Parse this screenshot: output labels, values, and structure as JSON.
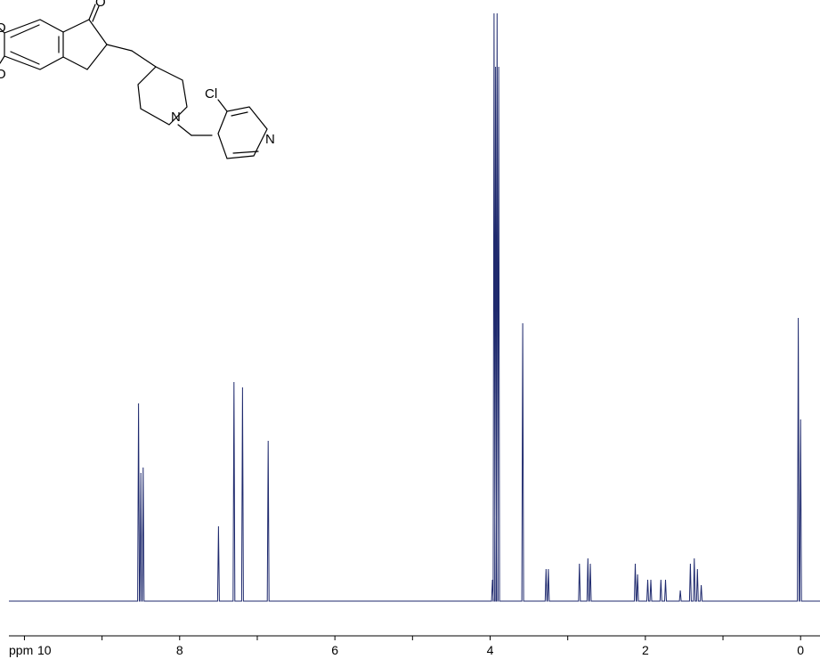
{
  "chart_data": {
    "type": "line",
    "title": "",
    "xlabel": "ppm",
    "ylabel": "",
    "x_reversed": true,
    "xlim": [
      10.2,
      -0.25
    ],
    "x_ticks": [
      10,
      8,
      6,
      4,
      2,
      0
    ],
    "x_tick_labels": [
      "10",
      "8",
      "6",
      "4",
      "2",
      "0"
    ],
    "minor_tick_step": 1,
    "grid": false,
    "legend": "none",
    "series": [
      {
        "peaks": [
          {
            "x": 8.53,
            "y": 0.37
          },
          {
            "x": 8.5,
            "y": 0.24
          },
          {
            "x": 8.47,
            "y": 0.25
          },
          {
            "x": 7.5,
            "y": 0.14
          },
          {
            "x": 7.3,
            "y": 0.41
          },
          {
            "x": 7.19,
            "y": 0.4
          },
          {
            "x": 6.86,
            "y": 0.3
          },
          {
            "x": 3.97,
            "y": 0.04
          },
          {
            "x": 3.95,
            "y": 1.1
          },
          {
            "x": 3.93,
            "y": 1.0
          },
          {
            "x": 3.91,
            "y": 1.1
          },
          {
            "x": 3.89,
            "y": 1.0
          },
          {
            "x": 3.58,
            "y": 0.52
          },
          {
            "x": 3.28,
            "y": 0.06
          },
          {
            "x": 3.25,
            "y": 0.06
          },
          {
            "x": 2.85,
            "y": 0.07
          },
          {
            "x": 2.74,
            "y": 0.08
          },
          {
            "x": 2.71,
            "y": 0.07
          },
          {
            "x": 2.13,
            "y": 0.07
          },
          {
            "x": 2.1,
            "y": 0.05
          },
          {
            "x": 1.97,
            "y": 0.04
          },
          {
            "x": 1.93,
            "y": 0.04
          },
          {
            "x": 1.8,
            "y": 0.04
          },
          {
            "x": 1.74,
            "y": 0.04
          },
          {
            "x": 1.55,
            "y": 0.02
          },
          {
            "x": 1.42,
            "y": 0.07
          },
          {
            "x": 1.37,
            "y": 0.08
          },
          {
            "x": 1.33,
            "y": 0.06
          },
          {
            "x": 1.28,
            "y": 0.03
          },
          {
            "x": 0.03,
            "y": 0.53
          },
          {
            "x": 0.0,
            "y": 0.34
          }
        ]
      }
    ],
    "colors": {
      "trace": "#1f2a6e",
      "axis": "#000000",
      "background": "#ffffff"
    }
  },
  "structure": {
    "atom_labels": {
      "carbonyl_o": "O",
      "methoxy_o_upper": "O",
      "methoxy_o_lower": "O",
      "piperidine_n": "N",
      "pyridine_n": "N",
      "chlorine": "Cl"
    }
  }
}
